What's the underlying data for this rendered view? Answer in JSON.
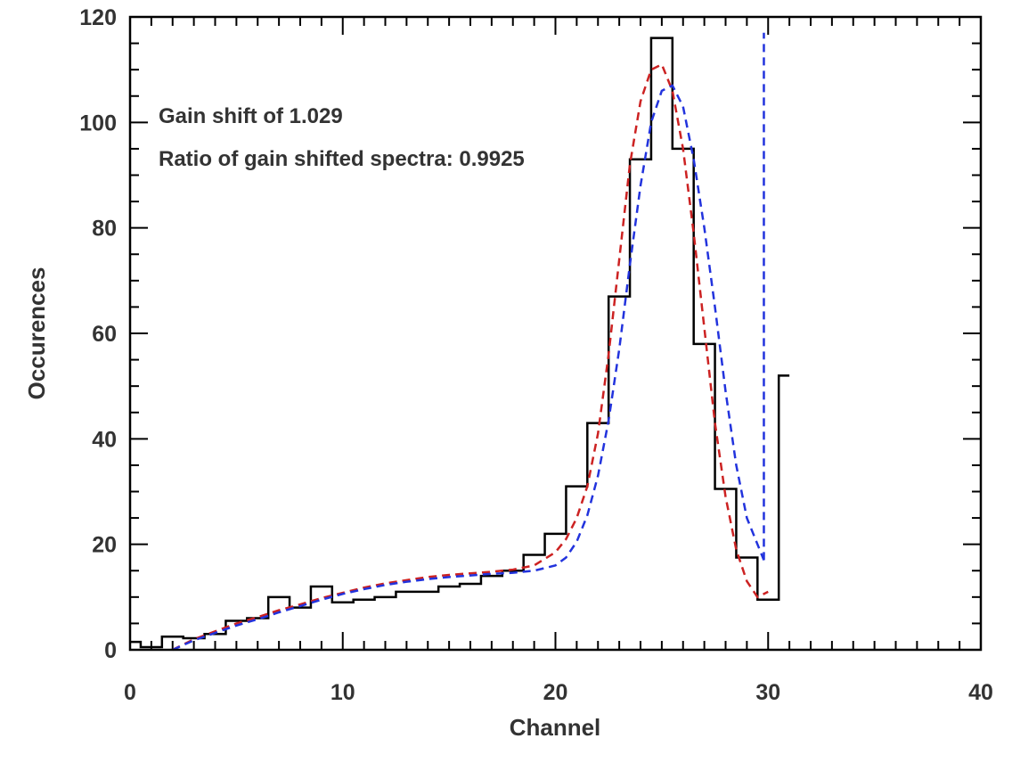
{
  "chart_data": {
    "type": "line",
    "title": "",
    "xlabel": "Channel",
    "ylabel": "Occurences",
    "xlim": [
      0,
      40
    ],
    "ylim": [
      0,
      120
    ],
    "x_ticks": [
      0,
      10,
      20,
      30,
      40
    ],
    "y_ticks": [
      0,
      20,
      40,
      60,
      80,
      100,
      120
    ],
    "x_minor_step": 1,
    "y_minor_step": 5,
    "grid": false,
    "annotations": [
      "Gain shift of 1.029",
      "Ratio of gain shifted spectra: 0.9925"
    ],
    "series": [
      {
        "name": "histogram",
        "style": "step",
        "color": "#000000",
        "bin_edges": [
          0,
          0.5,
          1.5,
          2.5,
          3.5,
          4.5,
          5.5,
          6.5,
          7.5,
          8.5,
          9.5,
          10.5,
          11.5,
          12.5,
          13.5,
          14.5,
          15.5,
          16.5,
          17.5,
          18.5,
          19.5,
          20.5,
          21.5,
          22.5,
          23.5,
          24.5,
          25.5,
          26.5,
          27.5,
          28.5,
          29.5,
          30.5,
          31.0
        ],
        "counts": [
          1.5,
          0.5,
          2.5,
          2.2,
          3,
          5.5,
          6,
          10,
          8,
          12,
          9,
          9.5,
          10,
          11,
          11,
          12,
          12.5,
          14,
          15,
          18,
          22,
          31,
          43,
          67,
          93,
          116,
          95,
          58,
          30.5,
          17.5,
          9.5,
          52
        ]
      },
      {
        "name": "red fit",
        "style": "dashed",
        "color": "#cc2222",
        "x": [
          2,
          3,
          4,
          5,
          6,
          7,
          8,
          9,
          10,
          11,
          12,
          13,
          14,
          15,
          16,
          17,
          18,
          19,
          20,
          20.5,
          21,
          21.5,
          22,
          22.5,
          23,
          23.5,
          24,
          24.5,
          25,
          25.5,
          26,
          26.5,
          27,
          27.5,
          28,
          28.5,
          29,
          29.5,
          30
        ],
        "y": [
          0,
          2,
          3.5,
          5,
          6.2,
          7.5,
          8.6,
          9.8,
          10.8,
          11.8,
          12.6,
          13.2,
          13.8,
          14.2,
          14.5,
          14.8,
          15.2,
          16,
          18.5,
          21,
          25,
          31,
          41,
          56,
          74,
          92,
          104,
          110,
          111,
          106,
          95,
          79,
          61,
          43,
          29,
          19,
          13,
          10,
          11
        ]
      },
      {
        "name": "blue fit",
        "style": "dashed",
        "color": "#2233dd",
        "x": [
          2,
          3,
          4,
          5,
          6,
          7,
          8,
          9,
          10,
          11,
          12,
          13,
          14,
          15,
          16,
          17,
          18,
          19,
          20,
          20.5,
          21,
          21.5,
          22,
          22.5,
          23,
          23.5,
          24,
          24.5,
          25,
          25.5,
          26,
          26.5,
          27,
          27.5,
          28,
          28.5,
          29,
          29.5,
          29.8
        ],
        "y": [
          0,
          1.8,
          3.2,
          4.6,
          5.8,
          7.1,
          8.3,
          9.5,
          10.6,
          11.5,
          12.3,
          12.9,
          13.4,
          13.8,
          14.1,
          14.4,
          14.6,
          15,
          16,
          17.5,
          20.5,
          25.5,
          33,
          43.5,
          57,
          73,
          88,
          100,
          106,
          107,
          103,
          93,
          80,
          65,
          49,
          35,
          25,
          20,
          17
        ]
      },
      {
        "name": "blue vertical",
        "style": "dashed",
        "color": "#2233dd",
        "x": [
          29.8,
          29.8
        ],
        "y": [
          17,
          117
        ]
      }
    ]
  }
}
